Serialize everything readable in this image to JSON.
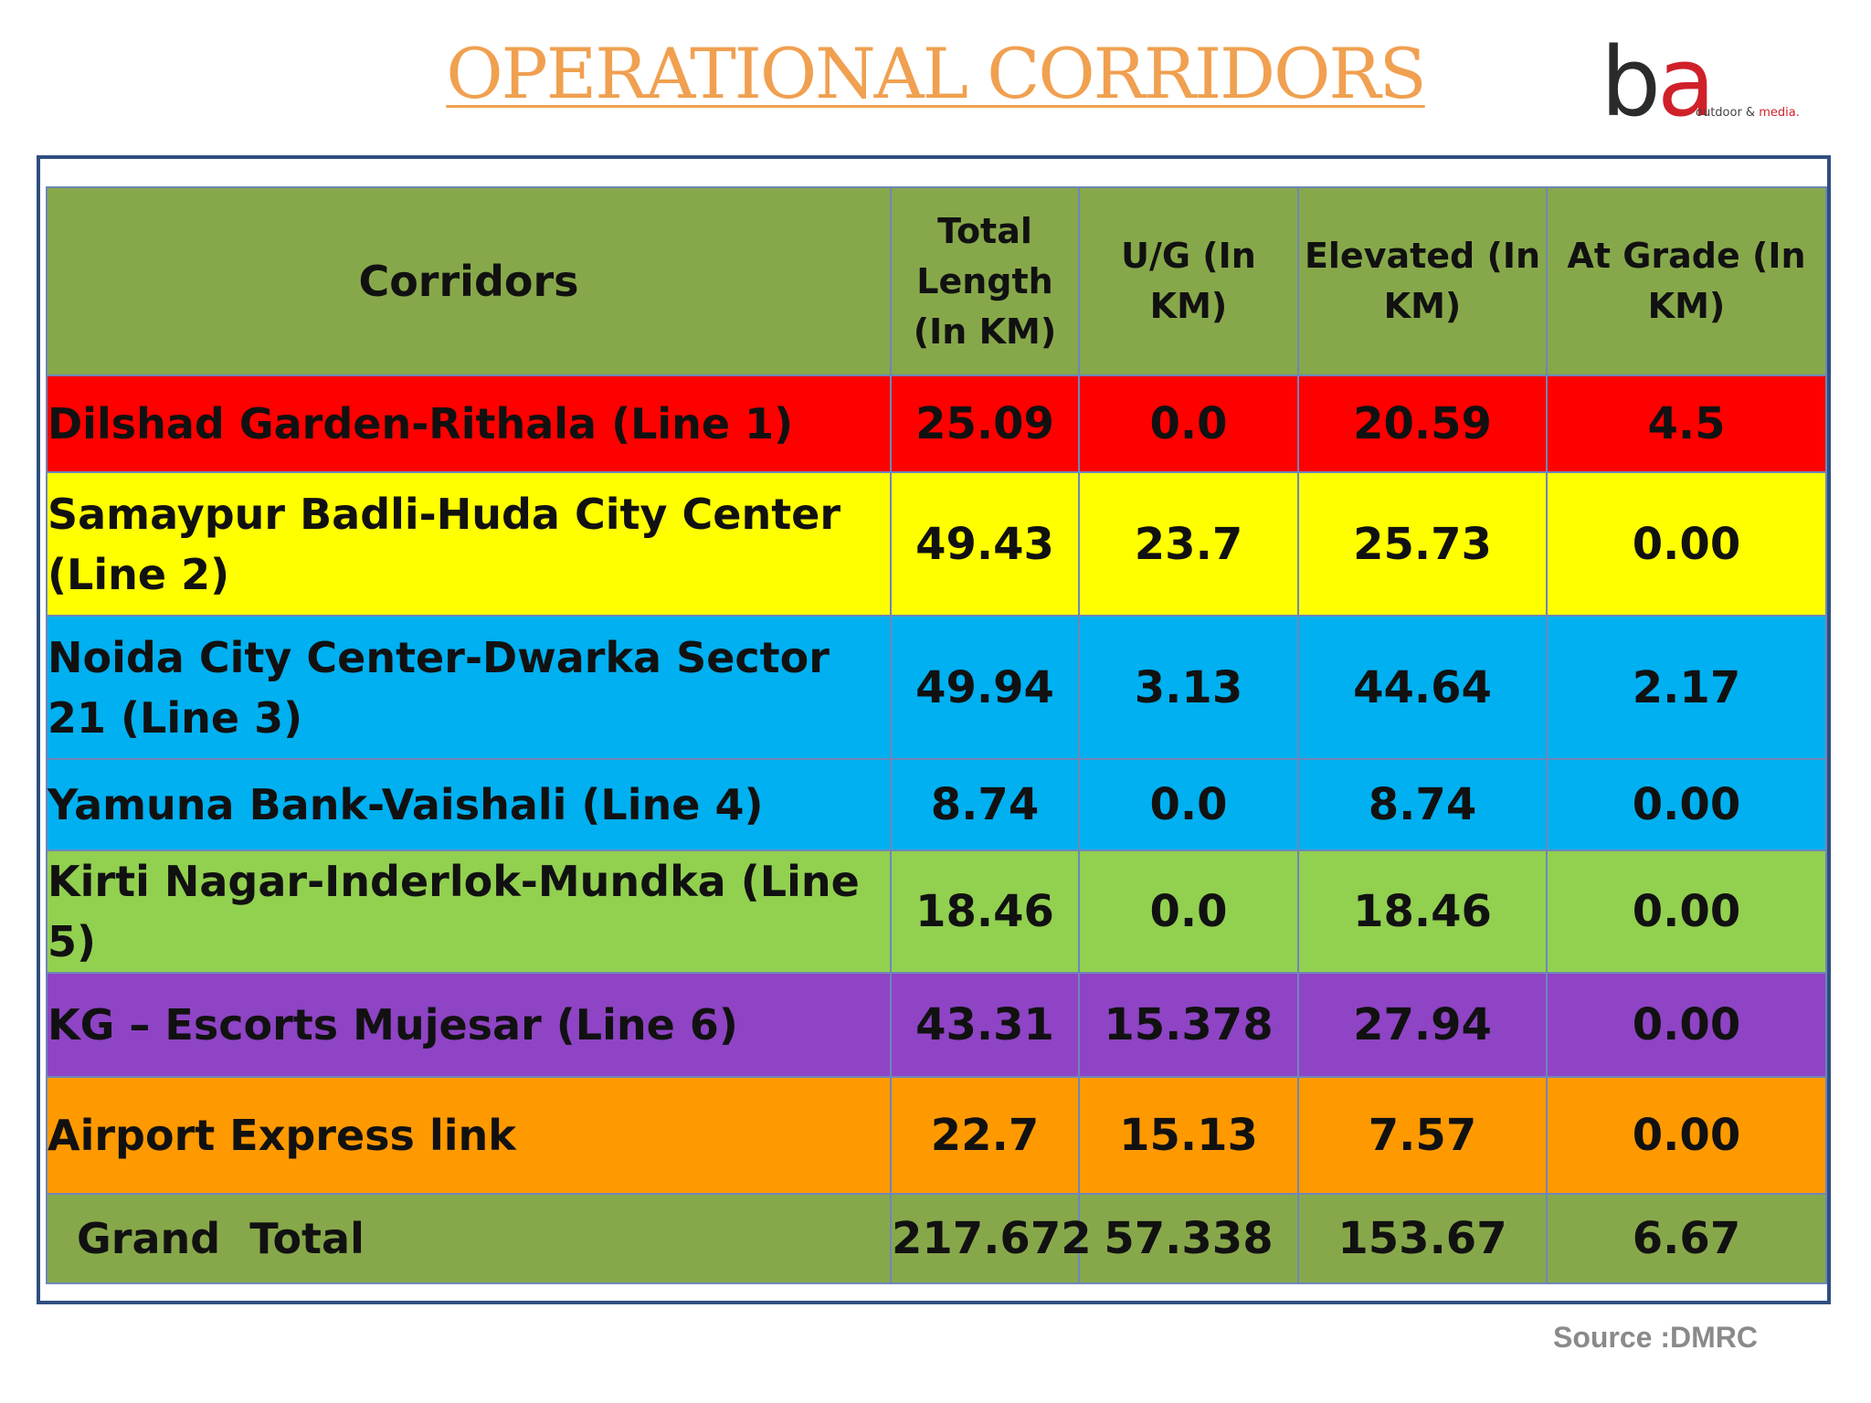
{
  "title": "OPERATIONAL CORRIDORS",
  "logo": {
    "letters_b": "b",
    "letters_a": "a",
    "tagline_part1": "outdoor & ",
    "tagline_part2": "media."
  },
  "table": {
    "headers": {
      "corridors": "Corridors",
      "total": "Total Length (In KM)",
      "ug": "U/G (In KM)",
      "elevated": "Elevated (In KM)",
      "at_grade": "At Grade (In KM)"
    },
    "rows": [
      {
        "name": "Dilshad Garden-Rithala (Line 1)",
        "total": "25.09",
        "ug": "0.0",
        "elevated": "20.59",
        "at_grade": "4.5",
        "color": "#ff0000"
      },
      {
        "name": "Samaypur Badli-Huda City Center (Line 2)",
        "total": "49.43",
        "ug": "23.7",
        "elevated": "25.73",
        "at_grade": "0.00",
        "color": "#ffff00"
      },
      {
        "name": "Noida City Center-Dwarka Sector 21 (Line 3)",
        "total": "49.94",
        "ug": "3.13",
        "elevated": "44.64",
        "at_grade": "2.17",
        "color": "#00b0f0"
      },
      {
        "name": "Yamuna Bank-Vaishali (Line 4)",
        "total": "8.74",
        "ug": "0.0",
        "elevated": "8.74",
        "at_grade": "0.00",
        "color": "#00b0f0"
      },
      {
        "name": "Kirti Nagar-Inderlok-Mundka (Line 5)",
        "total": "18.46",
        "ug": "0.0",
        "elevated": "18.46",
        "at_grade": "0.00",
        "color": "#92d050"
      },
      {
        "name": "KG – Escorts Mujesar (Line 6)",
        "total": "43.31",
        "ug": "15.378",
        "elevated": "27.94",
        "at_grade": "0.00",
        "color": "#8e44c4"
      },
      {
        "name": "Airport Express link",
        "total": "22.7",
        "ug": "15.13",
        "elevated": "7.57",
        "at_grade": "0.00",
        "color": "#ff9900"
      }
    ],
    "total_row": {
      "name": "Grand  Total",
      "total": "217.672",
      "ug": "57.338",
      "elevated": "153.67",
      "at_grade": "6.67"
    }
  },
  "source": "Source :DMRC",
  "colors": {
    "header_bg": "#87a84a",
    "frame_border": "#2f4f7f",
    "title": "#f0a050"
  }
}
